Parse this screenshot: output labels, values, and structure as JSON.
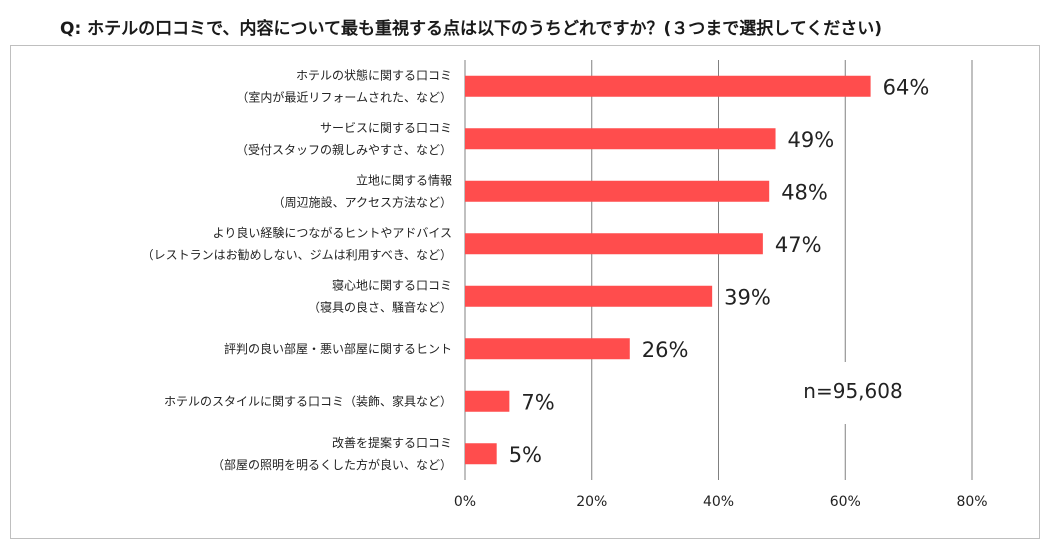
{
  "question": "Q:  ホテルの口コミで、内容について最も重視する点は以下のうちどれですか？(３つまで選択してください)",
  "sample_size": "n=95,608",
  "chart_data": {
    "type": "bar",
    "orientation": "horizontal",
    "categories": [
      [
        "ホテルの状態に関する口コミ",
        "（室内が最近リフォームされた、など）"
      ],
      [
        "サービスに関する口コミ",
        "（受付スタッフの親しみやすさ、など）"
      ],
      [
        "立地に関する情報",
        "（周辺施設、アクセス方法など）"
      ],
      [
        "より良い経験につながるヒントやアドバイス",
        "（レストランはお勧めしない、ジムは利用すべき、など）"
      ],
      [
        "寝心地に関する口コミ",
        "（寝具の良さ、騒音など）"
      ],
      [
        "評判の良い部屋・悪い部屋に関するヒント"
      ],
      [
        "ホテルのスタイルに関する口コミ（装飾、家具など）"
      ],
      [
        "改善を提案する口コミ",
        "（部屋の照明を明るくした方が良い、など）"
      ]
    ],
    "values": [
      64,
      49,
      48,
      47,
      39,
      26,
      7,
      5
    ],
    "value_labels": [
      "64%",
      "49%",
      "48%",
      "47%",
      "39%",
      "26%",
      "7%",
      "5%"
    ],
    "xlim": [
      0,
      80
    ],
    "ticks": [
      0,
      20,
      40,
      60,
      80
    ],
    "tick_labels": [
      "0%",
      "20%",
      "40%",
      "60%",
      "80%"
    ],
    "grid": true,
    "bar_color": "#ff4d4d"
  }
}
